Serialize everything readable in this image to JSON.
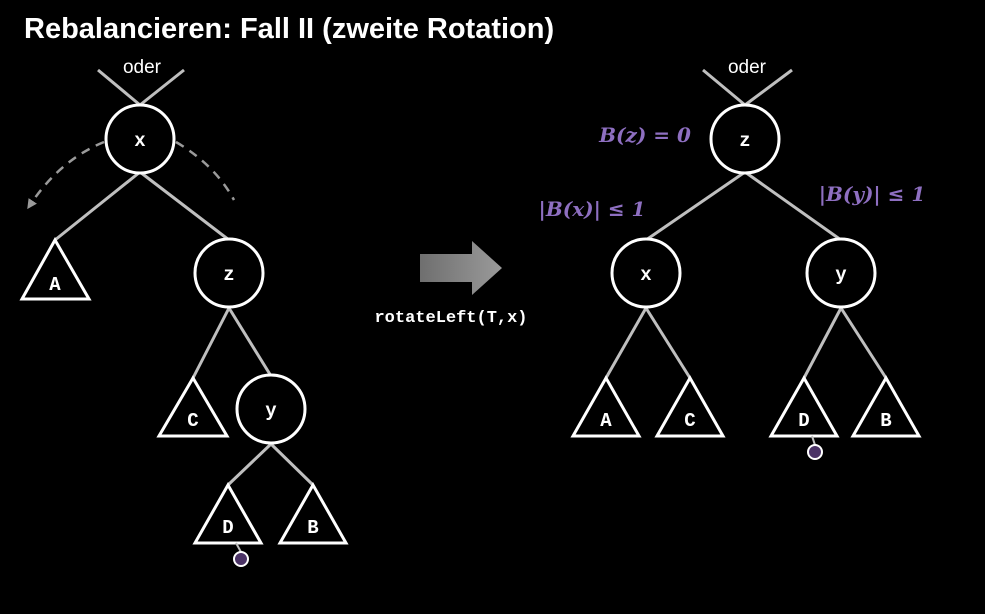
{
  "title": "Rebalancieren: Fall II (zweite Rotation)",
  "oder_label": "oder",
  "operation": "rotateLeft(T,x)",
  "before": {
    "nodes": {
      "x": "x",
      "z": "z",
      "y": "y"
    },
    "subtrees": {
      "A": "A",
      "C": "C",
      "D": "D",
      "B": "B"
    }
  },
  "after": {
    "nodes": {
      "z": "z",
      "x": "x",
      "y": "y"
    },
    "subtrees": {
      "A": "A",
      "C": "C",
      "D": "D",
      "B": "B"
    },
    "annotations": {
      "bz": "B(z) = 0",
      "bx": "|B(x)| ≤ 1",
      "by": "|B(y)| ≤ 1"
    }
  },
  "colors": {
    "background": "#000000",
    "foreground": "#ffffff",
    "edge": "#bfbfbf",
    "accent": "#8e6fc1",
    "marker": "#4b3366",
    "arrow": "#808080"
  }
}
